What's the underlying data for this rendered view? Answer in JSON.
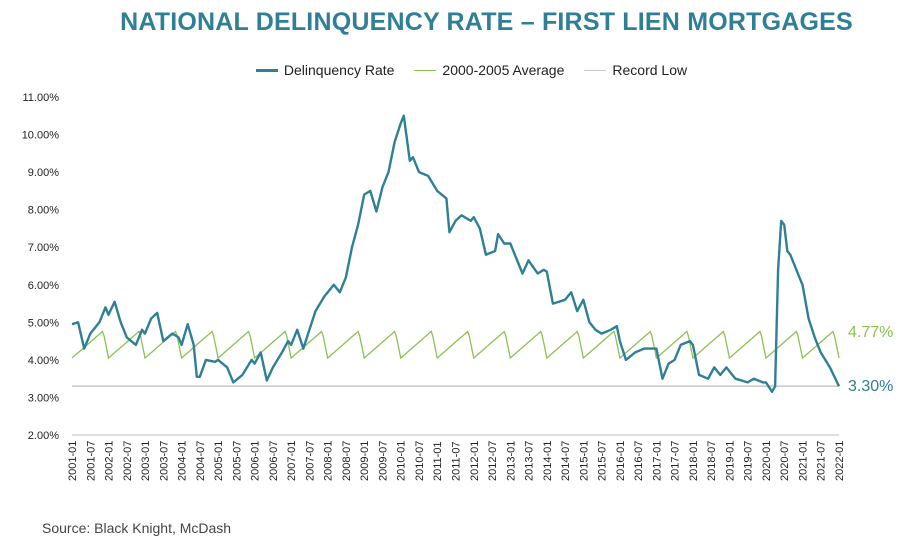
{
  "chart_data": {
    "type": "line",
    "title": "NATIONAL DELINQUENCY RATE – FIRST LIEN MORTGAGES",
    "source": "Source: Black Knight, McDash",
    "ylim": [
      2.0,
      11.0
    ],
    "y_ticks": [
      "2.00%",
      "3.00%",
      "4.00%",
      "5.00%",
      "6.00%",
      "7.00%",
      "8.00%",
      "9.00%",
      "10.00%",
      "11.00%"
    ],
    "x_ticks": [
      "2001-01",
      "2001-07",
      "2002-01",
      "2002-07",
      "2003-01",
      "2003-07",
      "2004-01",
      "2004-07",
      "2005-01",
      "2005-07",
      "2006-01",
      "2006-07",
      "2007-01",
      "2007-07",
      "2008-01",
      "2008-07",
      "2009-01",
      "2009-07",
      "2010-01",
      "2010-07",
      "2011-01",
      "2011-07",
      "2012-01",
      "2012-07",
      "2013-01",
      "2013-07",
      "2014-01",
      "2014-07",
      "2015-01",
      "2015-07",
      "2016-01",
      "2016-07",
      "2017-01",
      "2017-07",
      "2018-01",
      "2018-07",
      "2019-01",
      "2019-07",
      "2020-01",
      "2020-07",
      "2021-01",
      "2021-07",
      "2022-01"
    ],
    "grid": false,
    "legend_position": "top",
    "end_labels": {
      "average": "4.77%",
      "delinquency": "3.30%"
    },
    "colors": {
      "delinquency": "#2f7f96",
      "average": "#8cc152",
      "record_low": "#c8c8c8"
    },
    "series": [
      {
        "name": "Delinquency Rate",
        "points": [
          [
            "2001-01",
            4.95
          ],
          [
            "2001-03",
            5.0
          ],
          [
            "2001-05",
            4.3
          ],
          [
            "2001-07",
            4.7
          ],
          [
            "2001-10",
            5.0
          ],
          [
            "2001-12",
            5.4
          ],
          [
            "2002-01",
            5.2
          ],
          [
            "2002-03",
            5.55
          ],
          [
            "2002-05",
            5.0
          ],
          [
            "2002-07",
            4.6
          ],
          [
            "2002-10",
            4.4
          ],
          [
            "2002-12",
            4.8
          ],
          [
            "2003-01",
            4.7
          ],
          [
            "2003-03",
            5.1
          ],
          [
            "2003-05",
            5.25
          ],
          [
            "2003-07",
            4.5
          ],
          [
            "2003-10",
            4.7
          ],
          [
            "2003-12",
            4.6
          ],
          [
            "2004-01",
            4.4
          ],
          [
            "2004-03",
            4.95
          ],
          [
            "2004-05",
            4.4
          ],
          [
            "2004-06",
            3.55
          ],
          [
            "2004-07",
            3.55
          ],
          [
            "2004-09",
            4.0
          ],
          [
            "2004-12",
            3.95
          ],
          [
            "2005-01",
            4.0
          ],
          [
            "2005-04",
            3.8
          ],
          [
            "2005-06",
            3.4
          ],
          [
            "2005-09",
            3.6
          ],
          [
            "2005-12",
            4.0
          ],
          [
            "2006-01",
            3.9
          ],
          [
            "2006-03",
            4.2
          ],
          [
            "2006-05",
            3.45
          ],
          [
            "2006-07",
            3.8
          ],
          [
            "2006-10",
            4.2
          ],
          [
            "2006-12",
            4.5
          ],
          [
            "2007-01",
            4.4
          ],
          [
            "2007-03",
            4.8
          ],
          [
            "2007-05",
            4.3
          ],
          [
            "2007-07",
            4.8
          ],
          [
            "2007-09",
            5.3
          ],
          [
            "2007-12",
            5.7
          ],
          [
            "2008-01",
            5.8
          ],
          [
            "2008-03",
            6.0
          ],
          [
            "2008-05",
            5.8
          ],
          [
            "2008-07",
            6.2
          ],
          [
            "2008-09",
            7.0
          ],
          [
            "2008-11",
            7.6
          ],
          [
            "2009-01",
            8.4
          ],
          [
            "2009-03",
            8.5
          ],
          [
            "2009-05",
            7.95
          ],
          [
            "2009-07",
            8.6
          ],
          [
            "2009-09",
            9.0
          ],
          [
            "2009-11",
            9.8
          ],
          [
            "2010-01",
            10.3
          ],
          [
            "2010-02",
            10.5
          ],
          [
            "2010-04",
            9.3
          ],
          [
            "2010-05",
            9.4
          ],
          [
            "2010-07",
            9.0
          ],
          [
            "2010-10",
            8.9
          ],
          [
            "2011-01",
            8.5
          ],
          [
            "2011-04",
            8.3
          ],
          [
            "2011-05",
            7.4
          ],
          [
            "2011-07",
            7.7
          ],
          [
            "2011-09",
            7.85
          ],
          [
            "2011-12",
            7.7
          ],
          [
            "2012-01",
            7.8
          ],
          [
            "2012-03",
            7.5
          ],
          [
            "2012-05",
            6.8
          ],
          [
            "2012-08",
            6.9
          ],
          [
            "2012-09",
            7.35
          ],
          [
            "2012-11",
            7.1
          ],
          [
            "2013-01",
            7.1
          ],
          [
            "2013-03",
            6.7
          ],
          [
            "2013-05",
            6.3
          ],
          [
            "2013-07",
            6.65
          ],
          [
            "2013-10",
            6.3
          ],
          [
            "2013-12",
            6.4
          ],
          [
            "2014-01",
            6.35
          ],
          [
            "2014-03",
            5.5
          ],
          [
            "2014-07",
            5.6
          ],
          [
            "2014-09",
            5.8
          ],
          [
            "2014-11",
            5.3
          ],
          [
            "2015-01",
            5.6
          ],
          [
            "2015-03",
            5.0
          ],
          [
            "2015-05",
            4.8
          ],
          [
            "2015-07",
            4.7
          ],
          [
            "2015-10",
            4.8
          ],
          [
            "2015-12",
            4.9
          ],
          [
            "2016-01",
            4.5
          ],
          [
            "2016-03",
            4.0
          ],
          [
            "2016-06",
            4.2
          ],
          [
            "2016-09",
            4.3
          ],
          [
            "2016-12",
            4.3
          ],
          [
            "2017-01",
            4.3
          ],
          [
            "2017-03",
            3.5
          ],
          [
            "2017-05",
            3.9
          ],
          [
            "2017-07",
            4.0
          ],
          [
            "2017-09",
            4.4
          ],
          [
            "2017-12",
            4.5
          ],
          [
            "2018-01",
            4.4
          ],
          [
            "2018-03",
            3.6
          ],
          [
            "2018-06",
            3.5
          ],
          [
            "2018-08",
            3.8
          ],
          [
            "2018-10",
            3.6
          ],
          [
            "2018-12",
            3.8
          ],
          [
            "2019-01",
            3.7
          ],
          [
            "2019-03",
            3.5
          ],
          [
            "2019-07",
            3.4
          ],
          [
            "2019-09",
            3.5
          ],
          [
            "2019-12",
            3.4
          ],
          [
            "2020-01",
            3.4
          ],
          [
            "2020-03",
            3.15
          ],
          [
            "2020-04",
            3.3
          ],
          [
            "2020-05",
            6.4
          ],
          [
            "2020-06",
            7.7
          ],
          [
            "2020-07",
            7.6
          ],
          [
            "2020-08",
            6.9
          ],
          [
            "2020-09",
            6.8
          ],
          [
            "2020-12",
            6.2
          ],
          [
            "2021-01",
            6.0
          ],
          [
            "2021-03",
            5.1
          ],
          [
            "2021-05",
            4.6
          ],
          [
            "2021-07",
            4.2
          ],
          [
            "2021-10",
            3.8
          ],
          [
            "2022-01",
            3.3
          ]
        ]
      },
      {
        "name": "2000-2005 Average",
        "base": 4.05,
        "peak": 4.77,
        "pattern": "annual sawtooth: low each January, rising to peak in autumn"
      },
      {
        "name": "Record Low",
        "value": 3.3
      }
    ]
  }
}
